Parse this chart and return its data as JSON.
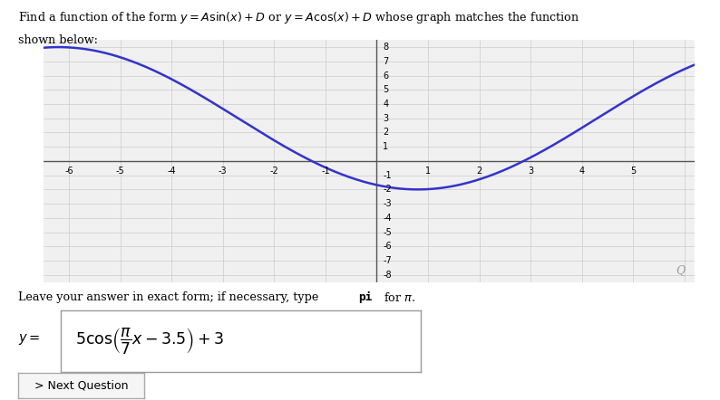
{
  "curve_color": "#3333cc",
  "curve_linewidth": 1.8,
  "A": 5,
  "phi": 3.5,
  "D": 3,
  "xmin": -6.5,
  "xmax": 6.2,
  "ymin": -8.5,
  "ymax": 8.5,
  "xticks": [
    -6,
    -5,
    -4,
    -3,
    -2,
    -1,
    1,
    2,
    3,
    4,
    5
  ],
  "yticks": [
    -8,
    -7,
    -6,
    -5,
    -4,
    -3,
    -2,
    -1,
    1,
    2,
    3,
    4,
    5,
    6,
    7,
    8
  ],
  "grid_color": "#cccccc",
  "grid_linewidth": 0.5,
  "axis_color": "#555555",
  "bg_color": "#ffffff",
  "plot_bg_color": "#f0f0f0",
  "next_button_text": "> Next Question",
  "title_math": "Find a function of the form $y = A\\sin(x) + D$ or $y = A\\cos(x) + D$ whose graph matches the function",
  "title_line2": "shown below:",
  "leave_text": "Leave your answer in exact form; if necessary, type ",
  "pi_bold": "pi",
  "for_pi": " for $\\pi$."
}
